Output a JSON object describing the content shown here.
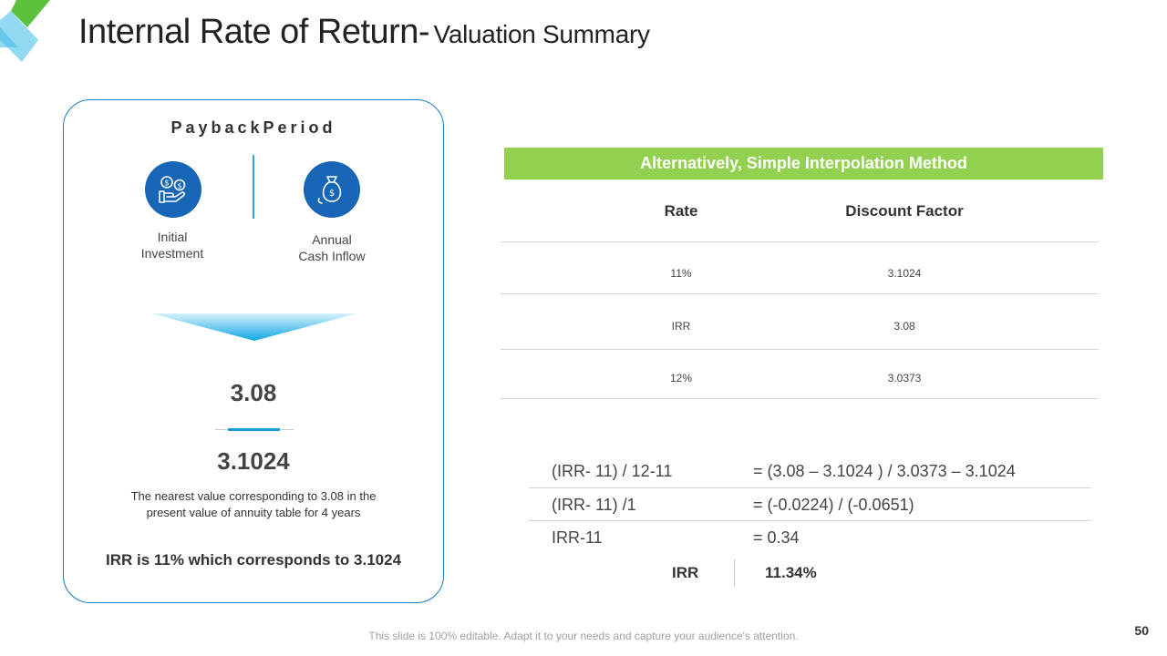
{
  "title": {
    "main": "Internal Rate of Return-",
    "sub": "Valuation Summary"
  },
  "card": {
    "title": "PaybackPeriod",
    "icons": [
      {
        "label_line1": "Initial",
        "label_line2": "Investment",
        "icon": "hand-money-icon"
      },
      {
        "label_line1": "Annual",
        "label_line2": "Cash Inflow",
        "icon": "money-bag-icon"
      }
    ],
    "value_top": "3.08",
    "value_bottom": "3.1024",
    "note_line1": "The nearest value corresponding to 3.08 in the",
    "note_line2": "present value of annuity table for 4 years",
    "conclusion": "IRR is 11% which corresponds to 3.1024"
  },
  "table": {
    "banner": "Alternatively,  Simple Interpolation Method",
    "headers": [
      "Rate",
      "Discount Factor"
    ],
    "rows": [
      [
        "11%",
        "3.1024"
      ],
      [
        "IRR",
        "3.08"
      ],
      [
        "12%",
        "3.0373"
      ]
    ]
  },
  "calculation": {
    "rows": [
      {
        "left": "(IRR- 11) / 12-11",
        "right": "= (3.08 – 3.1024 ) / 3.0373 – 3.1024"
      },
      {
        "left": "(IRR- 11) /1",
        "right": "= (-0.0224) / (-0.0651)"
      },
      {
        "left": "IRR-11",
        "right": "= 0.34"
      }
    ],
    "result_label": "IRR",
    "result_value": "11.34%"
  },
  "footer": "This slide is 100% editable. Adapt it to your needs and capture your audience's attention.",
  "page_number": "50",
  "colors": {
    "accent_blue": "#1666b5",
    "accent_green": "#92d050",
    "border_blue": "#1a7cc6"
  }
}
